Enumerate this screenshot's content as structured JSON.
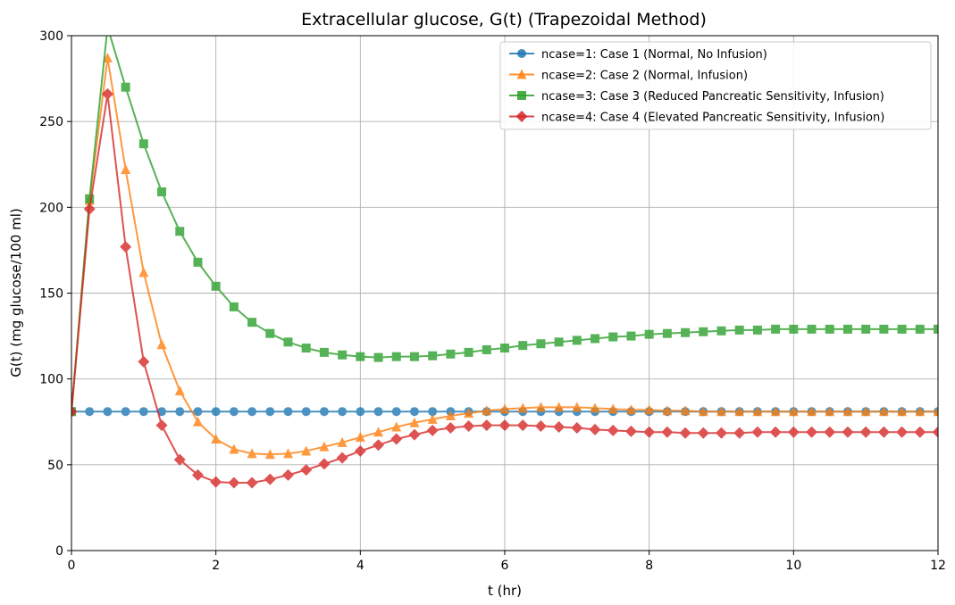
{
  "chart_data": {
    "type": "line",
    "title": "Extracellular glucose, G(t) (Trapezoidal Method)",
    "xlabel": "t (hr)",
    "ylabel": "G(t) (mg glucose/100 ml)",
    "xlim": [
      0,
      12
    ],
    "ylim": [
      0,
      300
    ],
    "xticks": [
      0,
      2,
      4,
      6,
      8,
      10,
      12
    ],
    "yticks": [
      0,
      50,
      100,
      150,
      200,
      250,
      300
    ],
    "grid": true,
    "legend_position": "top-right",
    "x": [
      0,
      0.25,
      0.5,
      0.75,
      1,
      1.25,
      1.5,
      1.75,
      2,
      2.25,
      2.5,
      2.75,
      3,
      3.25,
      3.5,
      3.75,
      4,
      4.25,
      4.5,
      4.75,
      5,
      5.25,
      5.5,
      5.75,
      6,
      6.25,
      6.5,
      6.75,
      7,
      7.25,
      7.5,
      7.75,
      8,
      8.25,
      8.5,
      8.75,
      9,
      9.25,
      9.5,
      9.75,
      10,
      10.25,
      10.5,
      10.75,
      11,
      11.25,
      11.5,
      11.75,
      12
    ],
    "series": [
      {
        "name": "ncase=1: Case 1 (Normal, No Infusion)",
        "color": "#1f77b4",
        "marker": "circle",
        "values": [
          81,
          81,
          81,
          81,
          81,
          81,
          81,
          81,
          81,
          81,
          81,
          81,
          81,
          81,
          81,
          81,
          81,
          81,
          81,
          81,
          81,
          81,
          81,
          81,
          81,
          81,
          81,
          81,
          81,
          81,
          81,
          81,
          81,
          81,
          81,
          81,
          81,
          81,
          81,
          81,
          81,
          81,
          81,
          81,
          81,
          81,
          81,
          81,
          81
        ]
      },
      {
        "name": "ncase=2: Case 2 (Normal, Infusion)",
        "color": "#ff7f0e",
        "marker": "triangle",
        "values": [
          81,
          204,
          287,
          222,
          162,
          120,
          93,
          75,
          65,
          59,
          56.5,
          56,
          56.5,
          58,
          60.5,
          63,
          66,
          69,
          72,
          74.5,
          76.5,
          78.5,
          80,
          81.5,
          82.5,
          83,
          83.5,
          83.5,
          83.5,
          83,
          82.5,
          82,
          82,
          81.5,
          81.5,
          81,
          81,
          81,
          81,
          81,
          81,
          81,
          81,
          81,
          81,
          81,
          81,
          81,
          81
        ]
      },
      {
        "name": "ncase=3: Case 3 (Reduced Pancreatic Sensitivity, Infusion)",
        "color": "#2ca02c",
        "marker": "square",
        "values": [
          81,
          205,
          305,
          270,
          237,
          209,
          186,
          168,
          154,
          142,
          133,
          126.5,
          121.5,
          118,
          115.5,
          114,
          113,
          112.5,
          113,
          113,
          113.5,
          114.5,
          115.5,
          117,
          118,
          119.5,
          120.5,
          121.5,
          122.5,
          123.5,
          124.5,
          125,
          126,
          126.5,
          127,
          127.5,
          128,
          128.5,
          128.5,
          129,
          129,
          129,
          129,
          129,
          129,
          129,
          129,
          129,
          129
        ]
      },
      {
        "name": "ncase=4: Case 4 (Elevated Pancreatic Sensitivity, Infusion)",
        "color": "#d62728",
        "marker": "diamond",
        "values": [
          81,
          199,
          266,
          177,
          110,
          73,
          53,
          44,
          40,
          39.5,
          39.5,
          41.5,
          44,
          47,
          50.5,
          54,
          58,
          61.5,
          65,
          67.5,
          70,
          71.5,
          72.5,
          73,
          73,
          73,
          72.5,
          72,
          71.5,
          70.5,
          70,
          69.5,
          69,
          69,
          68.5,
          68.5,
          68.5,
          68.5,
          69,
          69,
          69,
          69,
          69,
          69,
          69,
          69,
          69,
          69,
          69
        ]
      }
    ]
  }
}
